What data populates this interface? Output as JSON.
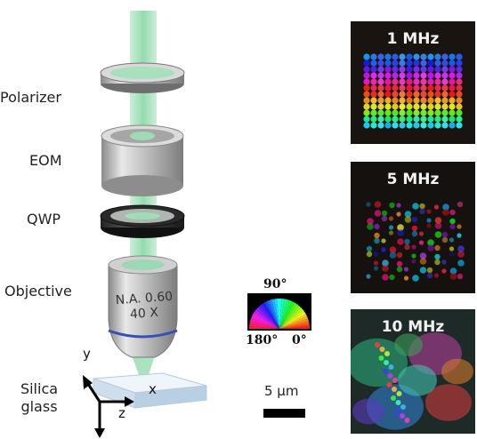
{
  "diagram": {
    "labels": {
      "polarizer": "Polarizer",
      "eom": "EOM",
      "qwp": "QWP",
      "objective": "Objective",
      "silica_line1": "Silica",
      "silica_line2": "glass"
    },
    "objective_text": {
      "na": "N.A. 0.60",
      "mag": "40 X"
    },
    "axes": {
      "x": "x",
      "y": "y",
      "z": "z"
    },
    "colors": {
      "beam": "#8fd9ac",
      "ring_light": "#d8d8d8",
      "ring_dark": "#2a2a2a",
      "glass": "#d7e6f2",
      "objective_band": "#3b4fb0"
    }
  },
  "color_wheel": {
    "top": "90°",
    "left": "180°",
    "right": "0°"
  },
  "scale_bar": {
    "label": "5 μm"
  },
  "panels": [
    {
      "label": "1 MHz"
    },
    {
      "label": "5 MHz"
    },
    {
      "label": "10 MHz"
    }
  ]
}
